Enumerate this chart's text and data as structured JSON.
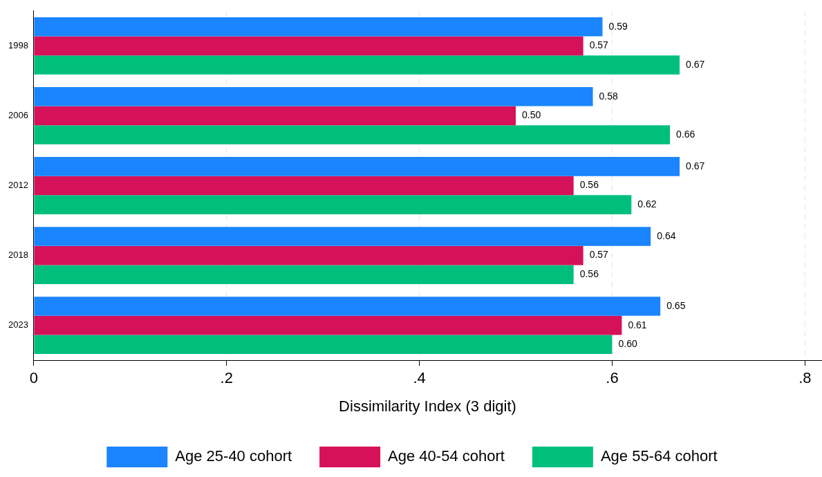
{
  "chart_data": {
    "type": "bar",
    "orientation": "horizontal",
    "xlabel": "Dissimilarity Index (3 digit)",
    "categories": [
      "1998",
      "2006",
      "2012",
      "2018",
      "2023"
    ],
    "series": [
      {
        "name": "Age 25-40 cohort",
        "color": "#1a85ff",
        "values": [
          0.59,
          0.58,
          0.67,
          0.64,
          0.65
        ],
        "value_labels": [
          "0.59",
          "0.58",
          "0.67",
          "0.64",
          "0.65"
        ]
      },
      {
        "name": "Age 40-54 cohort",
        "color": "#d41159",
        "values": [
          0.57,
          0.5,
          0.56,
          0.57,
          0.61
        ],
        "value_labels": [
          "0.57",
          "0.50",
          "0.56",
          "0.57",
          "0.61"
        ]
      },
      {
        "name": "Age 55-64 cohort",
        "color": "#00bf7d",
        "values": [
          0.67,
          0.66,
          0.62,
          0.56,
          0.6
        ],
        "value_labels": [
          "0.67",
          "0.66",
          "0.62",
          "0.56",
          "0.60"
        ]
      }
    ],
    "xlim": [
      0,
      0.817
    ],
    "xticks": [
      0,
      {
        "value": 0.2,
        "label": ".2"
      },
      {
        "value": 0.4,
        "label": ".4"
      },
      {
        "value": 0.6,
        "label": ".6"
      },
      {
        "value": 0.8,
        "label": ".8"
      }
    ],
    "grid": "x",
    "legend": "bottom"
  }
}
